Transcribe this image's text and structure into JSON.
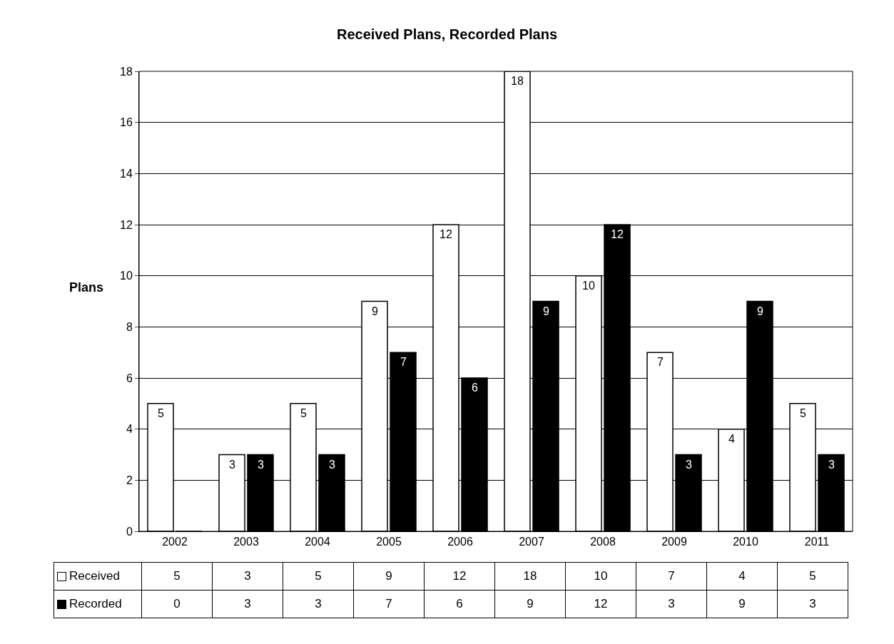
{
  "chart_data": {
    "type": "bar",
    "title": "Received Plans, Recorded Plans",
    "ylabel": "Plans",
    "categories": [
      "2002",
      "2003",
      "2004",
      "2005",
      "2006",
      "2007",
      "2008",
      "2009",
      "2010",
      "2011"
    ],
    "series": [
      {
        "name": "Received",
        "color": "#ffffff",
        "values": [
          5,
          3,
          5,
          9,
          12,
          18,
          10,
          7,
          4,
          5
        ]
      },
      {
        "name": "Recorded",
        "color": "#000000",
        "values": [
          0,
          3,
          3,
          7,
          6,
          9,
          12,
          3,
          9,
          3
        ]
      }
    ],
    "ylim": [
      0,
      18
    ],
    "yticks": [
      0,
      2,
      4,
      6,
      8,
      10,
      12,
      14,
      16,
      18
    ],
    "grid": "y",
    "legend": "bottom left",
    "data_labels": true,
    "annotations": [
      {
        "text": "5",
        "x": "2002",
        "y": 5
      },
      {
        "text": "3",
        "x": "2003",
        "y": 3
      },
      {
        "text": "3",
        "x": "2003",
        "y": 3
      },
      {
        "text": "5",
        "x": "2004",
        "y": 5
      },
      {
        "text": "3",
        "x": "2004",
        "y": 3
      },
      {
        "text": "9",
        "x": "2005",
        "y": 9
      },
      {
        "text": "7",
        "x": "2005",
        "y": 7
      },
      {
        "text": "12",
        "x": "2006",
        "y": 12
      },
      {
        "text": "6",
        "x": "2006",
        "y": 6
      },
      {
        "text": "18",
        "x": "2007",
        "y": 18
      },
      {
        "text": "9",
        "x": "2007",
        "y": 9
      },
      {
        "text": "10",
        "x": "2008",
        "y": 10
      },
      {
        "text": "12",
        "x": "2008",
        "y": 12
      },
      {
        "text": "7",
        "x": "2009",
        "y": 7
      },
      {
        "text": "3",
        "x": "2009",
        "y": 3
      },
      {
        "text": "4",
        "x": "2010",
        "y": 4
      },
      {
        "text": "9",
        "x": "2010",
        "y": 9
      },
      {
        "text": "5",
        "x": "2011",
        "y": 5
      },
      {
        "text": "3",
        "x": "2011",
        "y": 3
      }
    ]
  }
}
